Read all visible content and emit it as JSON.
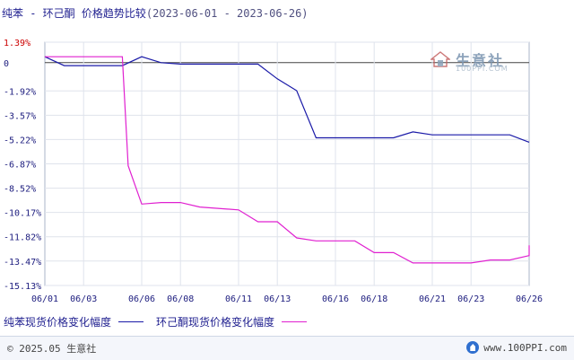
{
  "header": {
    "title": "纯苯 - 环己酮 价格趋势比较",
    "date_range": "(2023-06-01 - 2023-06-26)"
  },
  "watermark": {
    "brand": "生意社",
    "domain": "100PPI.COM"
  },
  "chart_data": {
    "type": "line",
    "title": "纯苯 - 环己酮 价格趋势比较",
    "subtitle": "(2023-06-01 - 2023-06-26)",
    "xlabel": "",
    "ylabel": "",
    "x_ticks": [
      "06/01",
      "06/03",
      "06/06",
      "06/08",
      "06/11",
      "06/13",
      "06/16",
      "06/18",
      "06/21",
      "06/23",
      "06/26"
    ],
    "y_ticks": [
      "1.39%",
      "0",
      "-1.92%",
      "-3.57%",
      "-5.22%",
      "-6.87%",
      "-8.52%",
      "-10.17%",
      "-11.82%",
      "-13.47%",
      "-15.13%"
    ],
    "ylim": [
      -15.13,
      1.39
    ],
    "grid": true,
    "legend_position": "bottom-left",
    "series": [
      {
        "name": "纯苯现货价格变化幅度",
        "color": "#1a1aa8",
        "points": [
          [
            "06/01",
            0.4
          ],
          [
            "06/02",
            -0.2
          ],
          [
            "06/05",
            -0.2
          ],
          [
            "06/06",
            0.4
          ],
          [
            "06/07",
            0.0
          ],
          [
            "06/08",
            -0.1
          ],
          [
            "06/12",
            -0.1
          ],
          [
            "06/13",
            -1.1
          ],
          [
            "06/14",
            -1.9
          ],
          [
            "06/15",
            -5.1
          ],
          [
            "06/16",
            -5.1
          ],
          [
            "06/19",
            -5.1
          ],
          [
            "06/20",
            -4.7
          ],
          [
            "06/21",
            -4.9
          ],
          [
            "06/25",
            -4.9
          ],
          [
            "06/26",
            -5.4
          ],
          [
            "06/26",
            -5.4
          ]
        ]
      },
      {
        "name": "环己酮现货价格变化幅度",
        "color": "#e020d0",
        "points": [
          [
            "06/01",
            0.4
          ],
          [
            "06/05",
            0.4
          ],
          [
            "06/05",
            -7.0
          ],
          [
            "06/06",
            -9.6
          ],
          [
            "06/07",
            -9.5
          ],
          [
            "06/08",
            -9.5
          ],
          [
            "06/09",
            -9.8
          ],
          [
            "06/11",
            -10.0
          ],
          [
            "06/12",
            -10.8
          ],
          [
            "06/13",
            -10.8
          ],
          [
            "06/14",
            -11.9
          ],
          [
            "06/15",
            -12.1
          ],
          [
            "06/17",
            -12.1
          ],
          [
            "06/18",
            -12.9
          ],
          [
            "06/19",
            -12.9
          ],
          [
            "06/20",
            -13.6
          ],
          [
            "06/22",
            -13.6
          ],
          [
            "06/23",
            -13.6
          ],
          [
            "06/24",
            -13.4
          ],
          [
            "06/25",
            -13.4
          ],
          [
            "06/26",
            -13.1
          ],
          [
            "06/26",
            -12.4
          ]
        ]
      }
    ]
  },
  "legend": [
    {
      "label": "纯苯现货价格变化幅度",
      "color": "#1a1aa8"
    },
    {
      "label": "环己酮现货价格变化幅度",
      "color": "#e020d0"
    }
  ],
  "footer": {
    "copyright": "© 2025.05 生意社",
    "site": "www.100PPI.com"
  }
}
